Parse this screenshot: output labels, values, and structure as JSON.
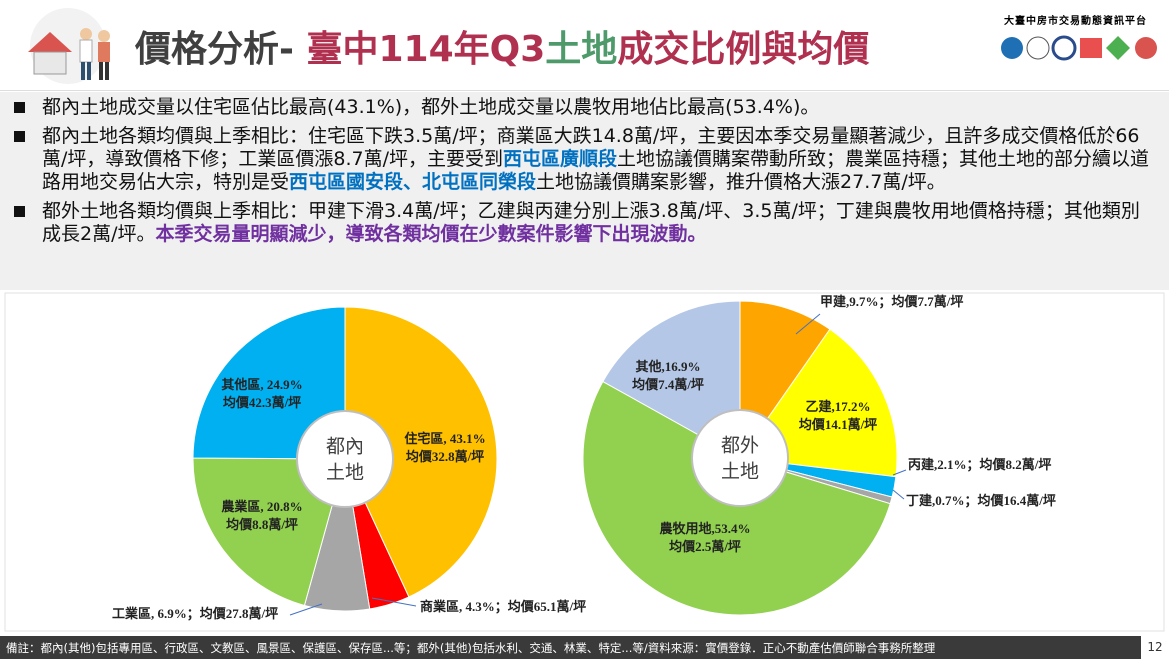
{
  "header": {
    "title_parts": [
      {
        "text": "價格分析- ",
        "color": "#404040"
      },
      {
        "text": "臺中114年Q3",
        "color": "#b0304f"
      },
      {
        "text": "土地",
        "color": "#4f9a6b"
      },
      {
        "text": "成交比例與均價",
        "color": "#b0304f"
      }
    ],
    "platform": "大臺中房市交易動態資訊平台"
  },
  "bullets": [
    [
      {
        "text": "都內土地成交量以住宅區佔比最高(43.1%)，都外土地成交量以農牧用地佔比最高(53.4%)。"
      }
    ],
    [
      {
        "text": "都內土地各類均價與上季相比：住宅區下跌3.5萬/坪；商業區大跌14.8萬/坪，主要因本季交易量顯著減少，且許多成交價格低於66萬/坪，導致價格下修；工業區價漲8.7萬/坪，主要受到"
      },
      {
        "text": "西屯區廣順段",
        "color": "#0070c0",
        "bold": true
      },
      {
        "text": "土地協議價購案帶動所致；農業區持穩；其他土地的部分續以道路用地交易佔大宗，特別是受"
      },
      {
        "text": "西屯區國安段、北屯區同榮段",
        "color": "#0070c0",
        "bold": true
      },
      {
        "text": "土地協議價購案影響，推升價格大漲27.7萬/坪。"
      }
    ],
    [
      {
        "text": "都外土地各類均價與上季相比：甲建下滑3.4萬/坪；乙建與丙建分別上漲3.8萬/坪、3.5萬/坪；丁建與農牧用地價格持穩；其他類別成長2萬/坪。"
      },
      {
        "text": "本季交易量明顯減少，導致各類均價在少數案件影響下出現波動。",
        "color": "#7030a0",
        "bold": true
      }
    ]
  ],
  "chart_data": [
    {
      "type": "pie",
      "center_label": [
        "都內",
        "土地"
      ],
      "sep": ", ",
      "joiner": "；",
      "categories": [
        "住宅區",
        "商業區",
        "工業區",
        "農業區",
        "其他區"
      ],
      "values": [
        43.1,
        4.3,
        6.9,
        20.8,
        24.9
      ],
      "value_labels": [
        "43.1%",
        "4.3%",
        "6.9%",
        "20.8%",
        "24.9%"
      ],
      "price_labels": [
        "均價32.8萬/坪",
        "均價65.1萬/坪",
        "均價27.8萬/坪",
        "均價8.8萬/坪",
        "均價42.3萬/坪"
      ],
      "colors": [
        "#ffc000",
        "#ff0000",
        "#a6a6a6",
        "#92d050",
        "#00b0f0"
      ]
    },
    {
      "type": "pie",
      "center_label": [
        "都外",
        "土地"
      ],
      "sep": ",",
      "joiner": "；",
      "categories": [
        "甲建",
        "乙建",
        "丙建",
        "丁建",
        "農牧用地",
        "其他"
      ],
      "values": [
        9.7,
        17.2,
        2.1,
        0.7,
        53.4,
        16.9
      ],
      "value_labels": [
        "9.7%",
        "17.2%",
        "2.1%",
        "0.7%",
        "53.4%",
        "16.9%"
      ],
      "price_labels": [
        "均價7.7萬/坪",
        "均價14.1萬/坪",
        "均價8.2萬/坪",
        "均價16.4萬/坪",
        "均價2.5萬/坪",
        "均價7.4萬/坪"
      ],
      "colors": [
        "#ffa500",
        "#ffff00",
        "#00b0f0",
        "#a6a6a6",
        "#92d050",
        "#b4c7e7"
      ]
    }
  ],
  "footer": {
    "note": "備註：都內(其他)包括專用區、行政區、文教區、風景區、保護區、保存區...等；都外(其他)包括水利、交通、林業、特定...等/資料來源：實價登錄．正心不動產估價師聯合事務所整理",
    "page": "12"
  }
}
